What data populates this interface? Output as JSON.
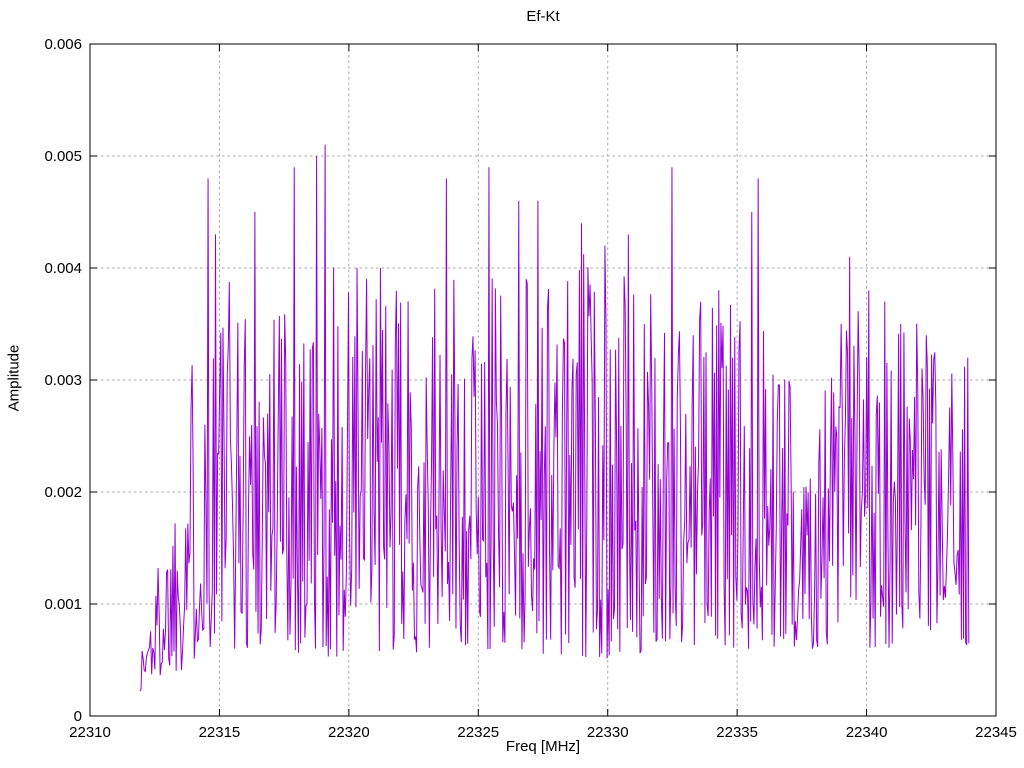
{
  "chart_data": {
    "type": "line",
    "title": "Ef-Kt",
    "xlabel": "Freq [MHz]",
    "ylabel": "Amplitude",
    "xlim": [
      22310,
      22345
    ],
    "ylim": [
      0,
      0.006
    ],
    "xticks": [
      22310,
      22315,
      22320,
      22325,
      22330,
      22335,
      22340,
      22345
    ],
    "xtick_labels": [
      "22310",
      "22315",
      "22320",
      "22325",
      "22330",
      "22335",
      "22340",
      "22345"
    ],
    "yticks": [
      0,
      0.001,
      0.002,
      0.003,
      0.004,
      0.005,
      0.006
    ],
    "ytick_labels": [
      "0",
      "0.001",
      "0.002",
      "0.003",
      "0.004",
      "0.005",
      "0.006"
    ],
    "grid": true,
    "legend": "none",
    "background_color": "#ffffff",
    "axis_color": "#000000",
    "grid_color": "#a8a8a8",
    "text_color": "#000000",
    "series": [
      {
        "name": "Ef-Kt",
        "color": "#9400d3",
        "x_start": 22311.93,
        "x_end": 22343.95,
        "n_points": 780,
        "noise_seed": 1337,
        "end_value": 0.00065,
        "envelope_max": [
          [
            22311.93,
            0.0006
          ],
          [
            22312.4,
            0.0012
          ],
          [
            22312.9,
            0.0017
          ],
          [
            22313.3,
            0.0022
          ],
          [
            22313.7,
            0.0031
          ],
          [
            22314.2,
            0.0035
          ],
          [
            22315.0,
            0.0041
          ],
          [
            22316.0,
            0.0039
          ],
          [
            22317.0,
            0.0041
          ],
          [
            22318.0,
            0.004
          ],
          [
            22319.0,
            0.0041
          ],
          [
            22320.0,
            0.004
          ],
          [
            22321.0,
            0.004
          ],
          [
            22322.0,
            0.0038
          ],
          [
            22323.0,
            0.0038
          ],
          [
            22324.0,
            0.0039
          ],
          [
            22325.0,
            0.0038
          ],
          [
            22326.0,
            0.0041
          ],
          [
            22327.0,
            0.0042
          ],
          [
            22328.0,
            0.004
          ],
          [
            22329.0,
            0.0042
          ],
          [
            22330.0,
            0.0043
          ],
          [
            22331.0,
            0.0039
          ],
          [
            22332.0,
            0.0037
          ],
          [
            22333.0,
            0.0038
          ],
          [
            22334.0,
            0.0038
          ],
          [
            22335.0,
            0.0038
          ],
          [
            22336.0,
            0.0036
          ],
          [
            22336.8,
            0.0031
          ],
          [
            22337.8,
            0.003
          ],
          [
            22338.6,
            0.0032
          ],
          [
            22339.3,
            0.0039
          ],
          [
            22340.3,
            0.0038
          ],
          [
            22341.3,
            0.0036
          ],
          [
            22342.3,
            0.0035
          ],
          [
            22343.0,
            0.003
          ],
          [
            22343.95,
            0.0032
          ]
        ],
        "envelope_min": [
          [
            22311.93,
            0.00018
          ],
          [
            22312.5,
            0.0003
          ],
          [
            22313.5,
            0.0004
          ],
          [
            22315.0,
            0.0006
          ],
          [
            22320.0,
            0.0005
          ],
          [
            22325.0,
            0.0006
          ],
          [
            22330.0,
            0.0005
          ],
          [
            22335.0,
            0.0006
          ],
          [
            22340.0,
            0.0006
          ],
          [
            22343.95,
            0.0006
          ]
        ],
        "peaks": [
          [
            22314.55,
            0.0048
          ],
          [
            22314.85,
            0.0043
          ],
          [
            22316.35,
            0.0045
          ],
          [
            22317.9,
            0.0049
          ],
          [
            22318.75,
            0.005
          ],
          [
            22319.1,
            0.0051
          ],
          [
            22320.3,
            0.004
          ],
          [
            22321.2,
            0.004
          ],
          [
            22323.75,
            0.0048
          ],
          [
            22325.4,
            0.0049
          ],
          [
            22326.55,
            0.0046
          ],
          [
            22327.3,
            0.0046
          ],
          [
            22329.0,
            0.0044
          ],
          [
            22329.9,
            0.0042
          ],
          [
            22330.8,
            0.0043
          ],
          [
            22332.5,
            0.0049
          ],
          [
            22333.6,
            0.0037
          ],
          [
            22334.3,
            0.0038
          ],
          [
            22335.55,
            0.0045
          ],
          [
            22335.8,
            0.0048
          ],
          [
            22339.0,
            0.0035
          ],
          [
            22339.35,
            0.0041
          ],
          [
            22340.1,
            0.0038
          ],
          [
            22340.7,
            0.0037
          ],
          [
            22341.3,
            0.0035
          ],
          [
            22342.3,
            0.0034
          ],
          [
            22343.9,
            0.0032
          ]
        ]
      }
    ]
  }
}
